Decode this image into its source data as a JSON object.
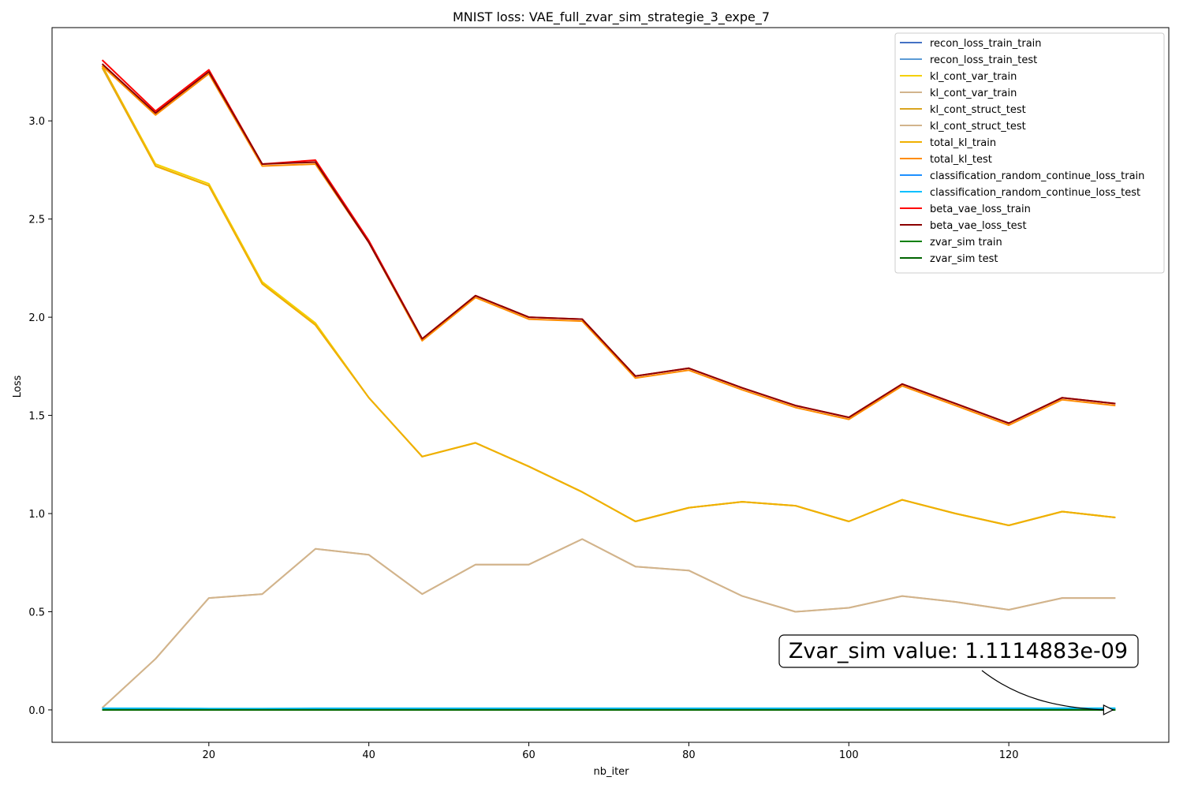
{
  "chart_data": {
    "type": "line",
    "title": "MNIST loss: VAE_full_zvar_sim_strategie_3_expe_7",
    "xlabel": "nb_iter",
    "ylabel": "Loss",
    "xlim": [
      0.4,
      140.0
    ],
    "ylim": [
      -0.165,
      3.475
    ],
    "xticks": [
      20,
      40,
      60,
      80,
      100,
      120
    ],
    "xtick_labels": [
      "20",
      "40",
      "60",
      "80",
      "100",
      "120"
    ],
    "yticks": [
      0.0,
      0.5,
      1.0,
      1.5,
      2.0,
      2.5,
      3.0
    ],
    "ytick_labels": [
      "0.0",
      "0.5",
      "1.0",
      "1.5",
      "2.0",
      "2.5",
      "3.0"
    ],
    "grid": false,
    "legend_position": "upper right",
    "x": [
      6.67,
      13.33,
      20.0,
      26.67,
      33.33,
      40.0,
      46.67,
      53.33,
      60.0,
      66.67,
      73.33,
      80.0,
      86.67,
      93.33,
      100.0,
      106.67,
      113.33,
      120.0,
      126.67,
      133.33
    ],
    "series": [
      {
        "name": "recon_loss_train_train",
        "color": "#4472c4",
        "values": [
          0.005,
          0.005,
          0.005,
          0.005,
          0.005,
          0.005,
          0.005,
          0.005,
          0.005,
          0.005,
          0.005,
          0.005,
          0.005,
          0.005,
          0.005,
          0.005,
          0.005,
          0.005,
          0.005,
          0.005
        ]
      },
      {
        "name": "recon_loss_train_test",
        "color": "#5b9bd5",
        "values": [
          0.005,
          0.005,
          0.005,
          0.005,
          0.005,
          0.005,
          0.005,
          0.005,
          0.005,
          0.005,
          0.005,
          0.005,
          0.005,
          0.005,
          0.005,
          0.005,
          0.005,
          0.005,
          0.005,
          0.005
        ]
      },
      {
        "name": "kl_cont_var_train",
        "color": "#f5d000",
        "values": [
          3.28,
          2.78,
          2.68,
          2.18,
          1.97,
          1.59,
          1.29,
          1.36,
          1.24,
          1.11,
          0.96,
          1.03,
          1.06,
          1.04,
          0.96,
          1.07,
          1.0,
          0.94,
          1.01,
          0.98
        ]
      },
      {
        "name": "kl_cont_var_train",
        "color": "#d2b48c",
        "values": [
          0.01,
          0.26,
          0.57,
          0.59,
          0.82,
          0.79,
          0.59,
          0.74,
          0.74,
          0.87,
          0.73,
          0.71,
          0.58,
          0.5,
          0.52,
          0.58,
          0.55,
          0.51,
          0.57,
          0.57
        ]
      },
      {
        "name": "kl_cont_struct_test",
        "color": "#daa520",
        "values": [
          3.27,
          2.77,
          2.67,
          2.17,
          1.96,
          1.59,
          1.29,
          1.36,
          1.24,
          1.11,
          0.96,
          1.03,
          1.06,
          1.04,
          0.96,
          1.07,
          1.0,
          0.94,
          1.01,
          0.98
        ]
      },
      {
        "name": "kl_cont_struct_test",
        "color": "#d2b48c",
        "values": [
          0.01,
          0.26,
          0.57,
          0.59,
          0.82,
          0.79,
          0.59,
          0.74,
          0.74,
          0.87,
          0.73,
          0.71,
          0.58,
          0.5,
          0.52,
          0.58,
          0.55,
          0.51,
          0.57,
          0.57
        ]
      },
      {
        "name": "total_kl_train",
        "color": "#f0b000",
        "values": [
          3.28,
          2.77,
          2.67,
          2.17,
          1.96,
          1.59,
          1.29,
          1.36,
          1.24,
          1.11,
          0.96,
          1.03,
          1.06,
          1.04,
          0.96,
          1.07,
          1.0,
          0.94,
          1.01,
          0.98
        ]
      },
      {
        "name": "total_kl_test",
        "color": "#ff8c00",
        "values": [
          3.28,
          3.03,
          3.24,
          2.77,
          2.78,
          2.38,
          1.88,
          2.1,
          1.99,
          1.98,
          1.69,
          1.73,
          1.63,
          1.54,
          1.48,
          1.65,
          1.55,
          1.45,
          1.58,
          1.55
        ]
      },
      {
        "name": "classification_random_continue_loss_train",
        "color": "#1e90ff",
        "values": [
          0.003,
          0.003,
          0.003,
          0.003,
          0.003,
          0.003,
          0.003,
          0.003,
          0.003,
          0.003,
          0.003,
          0.003,
          0.003,
          0.003,
          0.003,
          0.003,
          0.003,
          0.003,
          0.003,
          0.003
        ]
      },
      {
        "name": "classification_random_continue_loss_test",
        "color": "#00bfff",
        "values": [
          0.008,
          0.008,
          0.007,
          0.007,
          0.008,
          0.008,
          0.008,
          0.008,
          0.008,
          0.008,
          0.008,
          0.008,
          0.008,
          0.008,
          0.009,
          0.009,
          0.009,
          0.009,
          0.009,
          0.009
        ]
      },
      {
        "name": "beta_vae_loss_train",
        "color": "#ff0000",
        "values": [
          3.31,
          3.05,
          3.26,
          2.78,
          2.8,
          2.39,
          1.89,
          2.11,
          2.0,
          1.99,
          1.7,
          1.74,
          1.64,
          1.55,
          1.49,
          1.66,
          1.56,
          1.46,
          1.59,
          1.56
        ]
      },
      {
        "name": "beta_vae_loss_test",
        "color": "#8b0000",
        "values": [
          3.29,
          3.04,
          3.25,
          2.78,
          2.79,
          2.38,
          1.89,
          2.11,
          2.0,
          1.99,
          1.7,
          1.74,
          1.64,
          1.55,
          1.49,
          1.66,
          1.56,
          1.46,
          1.59,
          1.56
        ]
      },
      {
        "name": "zvar_sim train",
        "color": "#008000",
        "values": [
          0.0,
          0.0,
          0.0,
          0.0,
          0.0,
          0.0,
          0.0,
          0.0,
          0.0,
          0.0,
          0.0,
          0.0,
          0.0,
          0.0,
          0.0,
          0.0,
          0.0,
          0.0,
          0.0,
          0.0
        ]
      },
      {
        "name": "zvar_sim test",
        "color": "#006400",
        "values": [
          0.0,
          0.0,
          0.0,
          0.0,
          0.0,
          0.0,
          0.0,
          0.0,
          0.0,
          0.0,
          0.0,
          0.0,
          0.0,
          0.0,
          0.0,
          0.0,
          0.0,
          0.0,
          0.0,
          0.0
        ]
      }
    ],
    "annotation": {
      "text": "Zvar_sim value: 1.1114883e-09",
      "point": [
        133.33,
        0.0
      ]
    }
  }
}
